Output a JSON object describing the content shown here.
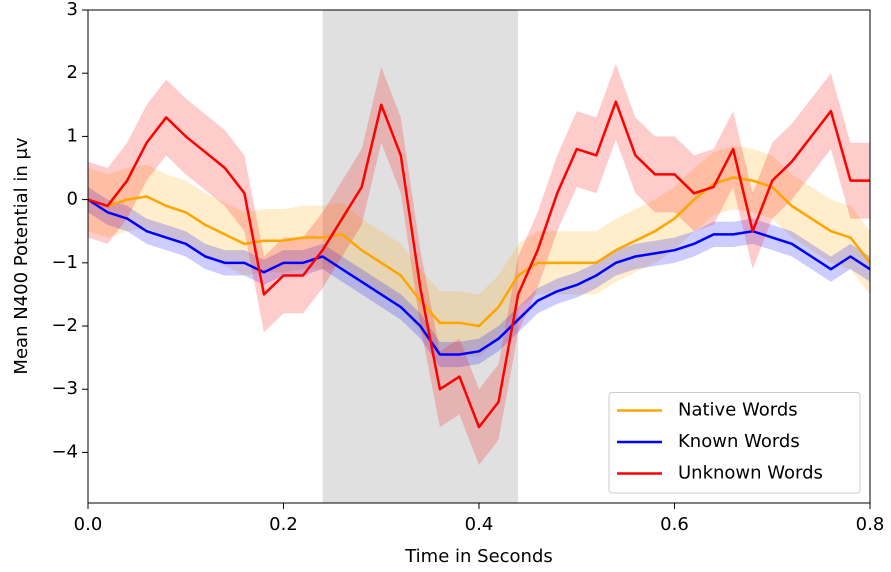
{
  "chart_data": {
    "type": "line",
    "xlabel": "Time in Seconds",
    "ylabel": "Mean N400 Potential in μv",
    "x": [
      0,
      0.02,
      0.04,
      0.06,
      0.08,
      0.1,
      0.12,
      0.14,
      0.16,
      0.18,
      0.2,
      0.22,
      0.24,
      0.26,
      0.28,
      0.3,
      0.32,
      0.34,
      0.36,
      0.38,
      0.4,
      0.42,
      0.44,
      0.46,
      0.48,
      0.5,
      0.52,
      0.54,
      0.56,
      0.58,
      0.6,
      0.62,
      0.64,
      0.66,
      0.68,
      0.7,
      0.72,
      0.74,
      0.76,
      0.78,
      0.8
    ],
    "series": [
      {
        "name": "Native Words",
        "color": "#ffa500",
        "error": 0.5,
        "values": [
          0,
          -0.1,
          0,
          0.05,
          -0.1,
          -0.2,
          -0.4,
          -0.55,
          -0.7,
          -0.65,
          -0.65,
          -0.6,
          -0.6,
          -0.55,
          -0.8,
          -1.0,
          -1.2,
          -1.6,
          -1.95,
          -1.95,
          -2.0,
          -1.7,
          -1.2,
          -1.0,
          -1.0,
          -1.0,
          -1.0,
          -0.8,
          -0.65,
          -0.5,
          -0.3,
          0.0,
          0.25,
          0.35,
          0.3,
          0.2,
          -0.1,
          -0.3,
          -0.5,
          -0.6,
          -1.0
        ]
      },
      {
        "name": "Known Words",
        "color": "#0000ff",
        "error": 0.2,
        "values": [
          0,
          -0.2,
          -0.3,
          -0.5,
          -0.6,
          -0.7,
          -0.9,
          -1.0,
          -1.0,
          -1.15,
          -1.0,
          -1.0,
          -0.9,
          -1.1,
          -1.3,
          -1.5,
          -1.7,
          -2.0,
          -2.45,
          -2.45,
          -2.4,
          -2.2,
          -1.9,
          -1.6,
          -1.45,
          -1.35,
          -1.2,
          -1.0,
          -0.9,
          -0.85,
          -0.8,
          -0.7,
          -0.55,
          -0.55,
          -0.5,
          -0.6,
          -0.7,
          -0.9,
          -1.1,
          -0.9,
          -1.1
        ]
      },
      {
        "name": "Unknown Words",
        "color": "#ff0000",
        "error": 0.6,
        "values": [
          0,
          -0.1,
          0.3,
          0.9,
          1.3,
          1.0,
          0.75,
          0.5,
          0.1,
          -1.5,
          -1.2,
          -1.2,
          -0.8,
          -0.3,
          0.2,
          1.5,
          0.7,
          -1.4,
          -3.0,
          -2.8,
          -3.6,
          -3.2,
          -1.5,
          -0.8,
          0.1,
          0.8,
          0.7,
          1.55,
          0.7,
          0.4,
          0.4,
          0.1,
          0.2,
          0.8,
          -0.5,
          0.3,
          0.6,
          1.0,
          1.4,
          0.3,
          0.3
        ]
      }
    ],
    "shaded_span": [
      0.24,
      0.44
    ],
    "xlim": [
      0,
      0.8
    ],
    "ylim": [
      -4.8,
      3
    ],
    "xticks": [
      {
        "value": 0,
        "label": "0.0"
      },
      0.2,
      0.4,
      0.6,
      0.8
    ],
    "yticks": [
      {
        "value": -4,
        "label": "−4"
      },
      {
        "value": -3,
        "label": "−3"
      },
      {
        "value": -2,
        "label": "−2"
      },
      {
        "value": -1,
        "label": "−1"
      },
      0,
      1,
      2,
      3
    ],
    "legend": "lower right"
  }
}
